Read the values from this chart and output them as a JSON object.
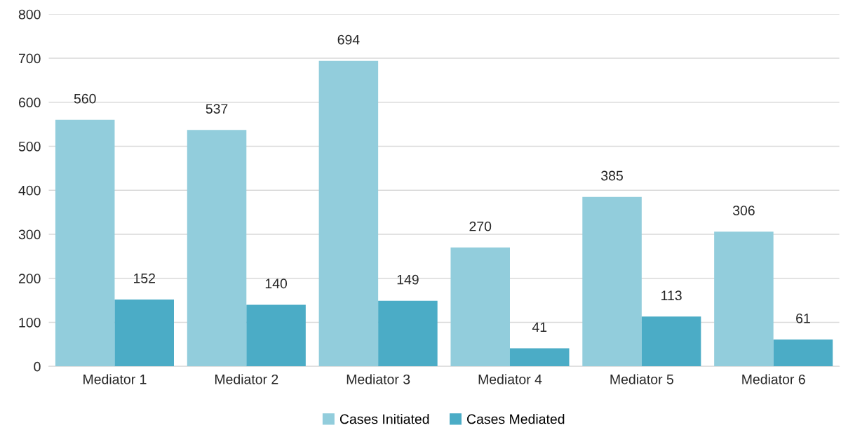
{
  "chart_data": {
    "type": "bar",
    "categories": [
      "Mediator 1",
      "Mediator 2",
      "Mediator 3",
      "Mediator 4",
      "Mediator 5",
      "Mediator 6"
    ],
    "series": [
      {
        "name": "Cases Initiated",
        "color": "#92cddc",
        "values": [
          560,
          537,
          694,
          270,
          385,
          306
        ]
      },
      {
        "name": "Cases Mediated",
        "color": "#4bacc6",
        "values": [
          152,
          140,
          149,
          41,
          113,
          61
        ]
      }
    ],
    "ylim": [
      0,
      800
    ],
    "yticks": [
      0,
      100,
      200,
      300,
      400,
      500,
      600,
      700,
      800
    ],
    "grid": "y",
    "legend": "bottom",
    "data_labels": true
  }
}
